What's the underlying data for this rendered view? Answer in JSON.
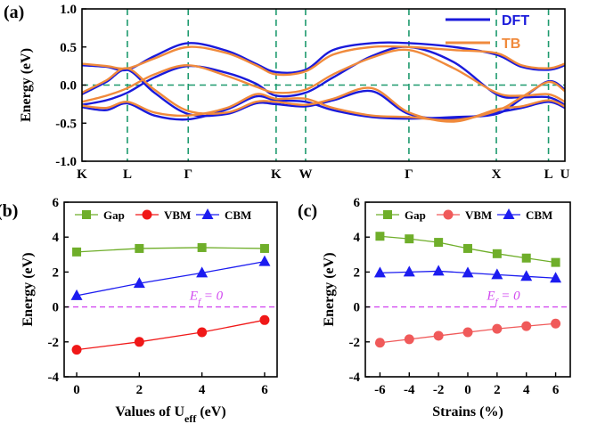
{
  "chart_data": [
    {
      "type": "line",
      "panel_label": "(a)",
      "ylabel": "Energy (eV)",
      "ylim": [
        -1.0,
        1.0
      ],
      "yticks": [
        "-1.0",
        "-0.5",
        "0.0",
        "0.5",
        "1.0"
      ],
      "kpath": [
        "K",
        "L",
        "Γ",
        "K",
        "W",
        "Γ",
        "X",
        "L",
        "U"
      ],
      "kpos": [
        0,
        0.094,
        0.22,
        0.402,
        0.463,
        0.677,
        0.858,
        0.966,
        1.0
      ],
      "legend": [
        {
          "name": "DFT",
          "color": "#1a1adb"
        },
        {
          "name": "TB",
          "color": "#f08a3c"
        }
      ],
      "series": [
        {
          "name": "DFT",
          "color": "#1a1adb",
          "bands": [
            [
              [
                0,
                0.26
              ],
              [
                0.05,
                0.24
              ],
              [
                0.094,
                0.2
              ],
              [
                0.15,
                0.38
              ],
              [
                0.22,
                0.55
              ],
              [
                0.3,
                0.45
              ],
              [
                0.36,
                0.28
              ],
              [
                0.402,
                0.17
              ],
              [
                0.463,
                0.2
              ],
              [
                0.52,
                0.46
              ],
              [
                0.6,
                0.55
              ],
              [
                0.677,
                0.55
              ],
              [
                0.77,
                0.5
              ],
              [
                0.858,
                0.4
              ],
              [
                0.91,
                0.24
              ],
              [
                0.966,
                0.2
              ],
              [
                1.0,
                0.26
              ]
            ],
            [
              [
                0,
                -0.26
              ],
              [
                0.05,
                -0.2
              ],
              [
                0.094,
                -0.1
              ],
              [
                0.15,
                0.1
              ],
              [
                0.22,
                0.25
              ],
              [
                0.3,
                0.16
              ],
              [
                0.36,
                0.02
              ],
              [
                0.402,
                -0.14
              ],
              [
                0.463,
                -0.1
              ],
              [
                0.52,
                0.1
              ],
              [
                0.6,
                0.38
              ],
              [
                0.677,
                0.5
              ],
              [
                0.77,
                0.3
              ],
              [
                0.858,
                -0.12
              ],
              [
                0.91,
                -0.16
              ],
              [
                0.966,
                -0.16
              ],
              [
                1.0,
                -0.26
              ]
            ],
            [
              [
                0,
                -0.29
              ],
              [
                0.05,
                -0.33
              ],
              [
                0.094,
                -0.24
              ],
              [
                0.15,
                -0.4
              ],
              [
                0.22,
                -0.45
              ],
              [
                0.3,
                -0.32
              ],
              [
                0.36,
                -0.15
              ],
              [
                0.402,
                -0.2
              ],
              [
                0.463,
                -0.22
              ],
              [
                0.52,
                -0.33
              ],
              [
                0.6,
                -0.42
              ],
              [
                0.677,
                -0.44
              ],
              [
                0.77,
                -0.42
              ],
              [
                0.858,
                -0.38
              ],
              [
                0.91,
                -0.18
              ],
              [
                0.966,
                0.05
              ],
              [
                1.0,
                -0.06
              ]
            ],
            [
              [
                0,
                -0.12
              ],
              [
                0.05,
                0.04
              ],
              [
                0.094,
                0.2
              ],
              [
                0.15,
                -0.1
              ],
              [
                0.22,
                -0.38
              ],
              [
                0.3,
                -0.38
              ],
              [
                0.36,
                -0.24
              ],
              [
                0.402,
                -0.25
              ],
              [
                0.463,
                -0.28
              ],
              [
                0.52,
                -0.2
              ],
              [
                0.6,
                -0.08
              ],
              [
                0.677,
                -0.38
              ],
              [
                0.77,
                -0.44
              ],
              [
                0.858,
                -0.36
              ],
              [
                0.91,
                -0.3
              ],
              [
                0.966,
                -0.22
              ],
              [
                1.0,
                -0.3
              ]
            ]
          ]
        },
        {
          "name": "TB",
          "color": "#f08a3c",
          "bands": [
            [
              [
                0,
                0.28
              ],
              [
                0.05,
                0.25
              ],
              [
                0.094,
                0.22
              ],
              [
                0.15,
                0.35
              ],
              [
                0.22,
                0.5
              ],
              [
                0.3,
                0.42
              ],
              [
                0.36,
                0.26
              ],
              [
                0.402,
                0.14
              ],
              [
                0.463,
                0.18
              ],
              [
                0.52,
                0.4
              ],
              [
                0.6,
                0.5
              ],
              [
                0.677,
                0.5
              ],
              [
                0.77,
                0.46
              ],
              [
                0.858,
                0.42
              ],
              [
                0.91,
                0.26
              ],
              [
                0.966,
                0.22
              ],
              [
                1.0,
                0.28
              ]
            ],
            [
              [
                0,
                -0.22
              ],
              [
                0.05,
                -0.14
              ],
              [
                0.094,
                -0.04
              ],
              [
                0.15,
                0.14
              ],
              [
                0.22,
                0.26
              ],
              [
                0.3,
                0.12
              ],
              [
                0.36,
                -0.02
              ],
              [
                0.402,
                -0.1
              ],
              [
                0.463,
                -0.06
              ],
              [
                0.52,
                0.14
              ],
              [
                0.6,
                0.36
              ],
              [
                0.677,
                0.46
              ],
              [
                0.77,
                0.22
              ],
              [
                0.858,
                -0.1
              ],
              [
                0.91,
                -0.14
              ],
              [
                0.966,
                -0.12
              ],
              [
                1.0,
                -0.22
              ]
            ],
            [
              [
                0,
                -0.27
              ],
              [
                0.05,
                -0.3
              ],
              [
                0.094,
                -0.22
              ],
              [
                0.15,
                -0.36
              ],
              [
                0.22,
                -0.4
              ],
              [
                0.3,
                -0.3
              ],
              [
                0.36,
                -0.12
              ],
              [
                0.402,
                -0.18
              ],
              [
                0.463,
                -0.18
              ],
              [
                0.52,
                -0.3
              ],
              [
                0.6,
                -0.4
              ],
              [
                0.677,
                -0.42
              ],
              [
                0.77,
                -0.46
              ],
              [
                0.858,
                -0.34
              ],
              [
                0.91,
                -0.16
              ],
              [
                0.966,
                0.04
              ],
              [
                1.0,
                -0.08
              ]
            ],
            [
              [
                0,
                -0.1
              ],
              [
                0.05,
                0.06
              ],
              [
                0.094,
                0.22
              ],
              [
                0.15,
                -0.06
              ],
              [
                0.22,
                -0.34
              ],
              [
                0.3,
                -0.36
              ],
              [
                0.36,
                -0.22
              ],
              [
                0.402,
                -0.22
              ],
              [
                0.463,
                -0.26
              ],
              [
                0.52,
                -0.18
              ],
              [
                0.6,
                -0.04
              ],
              [
                0.677,
                -0.36
              ],
              [
                0.77,
                -0.48
              ],
              [
                0.858,
                -0.32
              ],
              [
                0.91,
                -0.28
              ],
              [
                0.966,
                -0.2
              ],
              [
                1.0,
                -0.28
              ]
            ]
          ]
        }
      ]
    },
    {
      "type": "line",
      "panel_label": "(b)",
      "xlabel_main": "Values of U",
      "xlabel_sub": "eff",
      "xlabel_unit": " (eV)",
      "ylabel": "Energy (eV)",
      "xlim": [
        -0.4,
        6.4
      ],
      "ylim": [
        -4,
        6
      ],
      "xticks": [
        0,
        2,
        4,
        6
      ],
      "yticks": [
        -4,
        -2,
        0,
        2,
        4,
        6
      ],
      "x": [
        0,
        2,
        4,
        6
      ],
      "annotation": {
        "main": "E",
        "sub": "f",
        "rest": " = 0"
      },
      "series": [
        {
          "name": "Gap",
          "color": "#6fae2a",
          "marker": "square",
          "values": [
            3.15,
            3.35,
            3.4,
            3.35
          ]
        },
        {
          "name": "VBM",
          "color": "#f01818",
          "marker": "circle",
          "values": [
            -2.45,
            -2.0,
            -1.45,
            -0.75
          ]
        },
        {
          "name": "CBM",
          "color": "#1c1cf0",
          "marker": "triangle",
          "values": [
            0.65,
            1.35,
            1.95,
            2.6
          ]
        }
      ]
    },
    {
      "type": "line",
      "panel_label": "(c)",
      "xlabel": "Strains (%)",
      "ylabel": "Energy (eV)",
      "xlim": [
        -7,
        7
      ],
      "ylim": [
        -4,
        6
      ],
      "xticks": [
        -6,
        -4,
        -2,
        0,
        2,
        4,
        6
      ],
      "yticks": [
        -4,
        -2,
        0,
        2,
        4,
        6
      ],
      "x": [
        -6,
        -4,
        -2,
        0,
        2,
        4,
        6
      ],
      "annotation": {
        "main": "E",
        "sub": "f",
        "rest": " = 0"
      },
      "series": [
        {
          "name": "Gap",
          "color": "#6fae2a",
          "marker": "square",
          "values": [
            4.05,
            3.9,
            3.7,
            3.35,
            3.05,
            2.8,
            2.55
          ]
        },
        {
          "name": "VBM",
          "color": "#f05a5a",
          "marker": "circle",
          "values": [
            -2.05,
            -1.85,
            -1.65,
            -1.45,
            -1.25,
            -1.1,
            -0.95
          ]
        },
        {
          "name": "CBM",
          "color": "#1c1cf0",
          "marker": "triangle",
          "values": [
            1.95,
            2.0,
            2.05,
            1.95,
            1.85,
            1.75,
            1.65
          ]
        }
      ]
    }
  ]
}
